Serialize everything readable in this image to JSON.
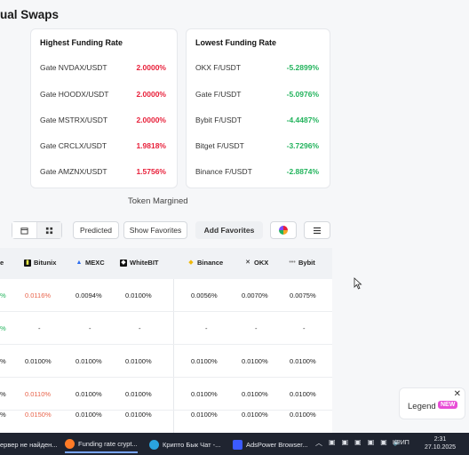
{
  "page": {
    "title": "ual Swaps"
  },
  "highest": {
    "title": "Highest Funding Rate",
    "rows": [
      {
        "pair": "Gate NVDAX/USDT",
        "rate": "2.0000%"
      },
      {
        "pair": "Gate HOODX/USDT",
        "rate": "2.0000%"
      },
      {
        "pair": "Gate MSTRX/USDT",
        "rate": "2.0000%"
      },
      {
        "pair": "Gate CRCLX/USDT",
        "rate": "1.9818%"
      },
      {
        "pair": "Gate AMZNX/USDT",
        "rate": "1.5756%"
      }
    ]
  },
  "lowest": {
    "title": "Lowest Funding Rate",
    "rows": [
      {
        "pair": "OKX F/USDT",
        "rate": "-5.2899%"
      },
      {
        "pair": "Gate F/USDT",
        "rate": "-5.0976%"
      },
      {
        "pair": "Bybit F/USDT",
        "rate": "-4.4487%"
      },
      {
        "pair": "Bitget F/USDT",
        "rate": "-3.7296%"
      },
      {
        "pair": "Binance F/USDT",
        "rate": "-2.8874%"
      }
    ]
  },
  "token_label": "Token Margined",
  "toolbar": {
    "predicted": "Predicted",
    "show_favorites": "Show Favorites",
    "add_favorites": "Add Favorites"
  },
  "columns": [
    "e",
    "Bitunix",
    "MEXC",
    "WhiteBIT",
    "Binance",
    "OKX",
    "Bybit"
  ],
  "rows": [
    [
      "%",
      "0.0116%",
      "0.0094%",
      "0.0100%",
      "0.0056%",
      "0.0070%",
      "0.0075%"
    ],
    [
      "%",
      "-",
      "-",
      "-",
      "-",
      "-",
      "-"
    ],
    [
      "%",
      "0.0100%",
      "0.0100%",
      "0.0100%",
      "0.0100%",
      "0.0100%",
      "0.0100%"
    ],
    [
      "%",
      "0.0110%",
      "0.0100%",
      "0.0100%",
      "0.0100%",
      "0.0100%",
      "0.0100%"
    ],
    [
      "%",
      "0.0150%",
      "0.0100%",
      "0.0100%",
      "0.0100%",
      "0.0100%",
      "0.0100%"
    ]
  ],
  "legend": {
    "label": "Legend",
    "badge": "NEW"
  },
  "taskbar": {
    "items": [
      "ервер не найден...",
      "Funding rate crypt...",
      "Крипто Бык Чат -...",
      "AdsPower Browser..."
    ],
    "lang": "КРИП",
    "time": "2:31",
    "date": "27.10.2025"
  },
  "colors": {
    "positive": "#e8203a",
    "negative": "#22b35c",
    "accent_new": "#e84dd6"
  }
}
